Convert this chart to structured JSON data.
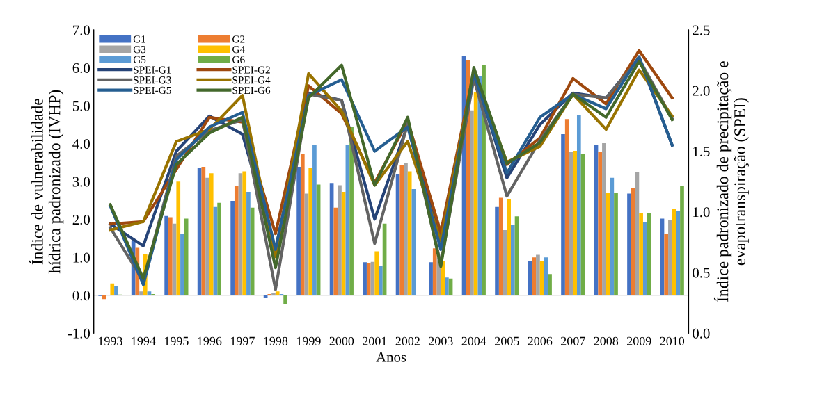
{
  "chart_data": {
    "type": "bar",
    "xlabel": "Anos",
    "ylabel": "Índice de vulnerabilidade\nhídrica padronizado (IVHP)",
    "y2label": "Índice padronizado de precipitação e\nevapotranspiração (SPEI)",
    "categories": [
      "1993",
      "1994",
      "1995",
      "1996",
      "1997",
      "1998",
      "1999",
      "2000",
      "2001",
      "2002",
      "2003",
      "2004",
      "2005",
      "2006",
      "2007",
      "2008",
      "2009",
      "2010"
    ],
    "ylim": [
      -1,
      7
    ],
    "yticks": [
      {
        "value": -1,
        "label": "-1.0"
      },
      {
        "value": 0,
        "label": "0.0"
      },
      {
        "value": 1,
        "label": "1.0"
      },
      {
        "value": 2,
        "label": "2.0"
      },
      {
        "value": 3,
        "label": "3.0"
      },
      {
        "value": 4,
        "label": "4.0"
      },
      {
        "value": 5,
        "label": "5.0"
      },
      {
        "value": 6,
        "label": "6.0"
      },
      {
        "value": 7,
        "label": "7.0"
      }
    ],
    "y2lim": [
      0,
      2.5
    ],
    "y2ticks": [
      {
        "value": 0,
        "label": "0.0"
      },
      {
        "value": 0.5,
        "label": "0.5"
      },
      {
        "value": 1,
        "label": "1.0"
      },
      {
        "value": 1.5,
        "label": "1.5"
      },
      {
        "value": 2,
        "label": "2.0"
      },
      {
        "value": 2.5,
        "label": "2.5"
      }
    ],
    "grid": false,
    "legend": "top left",
    "ref_lines": [
      {
        "axis": "y",
        "value": 0,
        "color": "#d9d9d9"
      }
    ],
    "series": [
      {
        "name": "G1",
        "color": "#4472c4",
        "values": [
          -0.02,
          1.45,
          2.09,
          3.37,
          2.49,
          -0.08,
          3.39,
          2.96,
          0.87,
          3.19,
          0.87,
          6.31,
          2.33,
          0.9,
          4.25,
          3.96,
          2.68,
          2.02
        ]
      },
      {
        "name": "G2",
        "color": "#ed7d31",
        "values": [
          -0.1,
          1.25,
          2.06,
          3.39,
          2.89,
          0.03,
          3.72,
          2.31,
          0.84,
          3.43,
          1.24,
          6.21,
          2.57,
          1.0,
          4.65,
          3.79,
          2.84,
          1.61
        ]
      },
      {
        "name": "G3",
        "color": "#a5a5a5",
        "values": [
          null,
          0.1,
          1.89,
          3.1,
          3.22,
          0.05,
          2.68,
          2.9,
          0.88,
          3.5,
          1.0,
          4.88,
          1.72,
          1.07,
          3.78,
          4.01,
          3.26,
          1.99
        ]
      },
      {
        "name": "G4",
        "color": "#ffc000",
        "values": [
          0.31,
          1.09,
          3.0,
          3.22,
          3.27,
          0.1,
          3.37,
          2.73,
          1.16,
          3.27,
          0.9,
          5.37,
          2.54,
          0.91,
          3.81,
          2.71,
          2.17,
          2.27
        ]
      },
      {
        "name": "G5",
        "color": "#5b9bd5",
        "values": [
          0.24,
          0.1,
          1.62,
          2.33,
          2.73,
          0.03,
          3.96,
          3.96,
          0.78,
          2.8,
          0.47,
          5.78,
          1.86,
          1.0,
          4.75,
          3.1,
          1.94,
          2.23
        ]
      },
      {
        "name": "G6",
        "color": "#70ad47",
        "values": [
          0.02,
          0.03,
          2.02,
          2.44,
          2.31,
          -0.23,
          2.92,
          4.45,
          1.89,
          null,
          0.44,
          6.08,
          2.08,
          0.56,
          3.73,
          2.71,
          2.17,
          2.89
        ]
      },
      {
        "name": "SPEI-G1",
        "type": "line",
        "axis": "y2",
        "color": "#264478",
        "values": [
          0.9,
          0.72,
          1.5,
          1.79,
          1.64,
          0.69,
          1.98,
          1.92,
          0.94,
          1.72,
          0.76,
          2.15,
          1.28,
          1.72,
          1.98,
          1.94,
          2.27,
          1.55
        ]
      },
      {
        "name": "SPEI-G2",
        "type": "line",
        "axis": "y2",
        "color": "#9e480e",
        "values": [
          0.9,
          0.92,
          1.35,
          1.78,
          1.74,
          0.82,
          2.04,
          1.81,
          1.24,
          1.75,
          0.83,
          2.16,
          1.39,
          1.61,
          2.1,
          1.89,
          2.33,
          1.94
        ]
      },
      {
        "name": "SPEI-G3",
        "type": "line",
        "axis": "y2",
        "color": "#636363",
        "values": [
          0.87,
          0.43,
          1.46,
          1.67,
          1.76,
          0.36,
          1.97,
          1.92,
          0.74,
          1.73,
          0.57,
          2.1,
          1.13,
          1.59,
          1.97,
          1.94,
          2.26,
          1.77
        ]
      },
      {
        "name": "SPEI-G4",
        "type": "line",
        "axis": "y2",
        "color": "#997300",
        "values": [
          0.85,
          0.92,
          1.58,
          1.68,
          1.96,
          0.63,
          2.14,
          1.83,
          1.22,
          1.58,
          0.76,
          2.15,
          1.41,
          1.54,
          1.97,
          1.68,
          2.17,
          1.79
        ]
      },
      {
        "name": "SPEI-G5",
        "type": "line",
        "axis": "y2",
        "color": "#255e91",
        "values": [
          1.05,
          0.4,
          1.43,
          1.7,
          1.82,
          0.69,
          1.96,
          2.09,
          1.5,
          1.7,
          0.69,
          2.14,
          1.32,
          1.78,
          1.97,
          1.85,
          2.28,
          1.55
        ]
      },
      {
        "name": "SPEI-G6",
        "type": "line",
        "axis": "y2",
        "color": "#43682b",
        "values": [
          1.06,
          0.45,
          1.39,
          1.65,
          1.78,
          0.54,
          1.94,
          2.21,
          1.22,
          1.78,
          0.55,
          2.19,
          1.4,
          1.57,
          1.97,
          1.78,
          2.24,
          1.76
        ]
      }
    ]
  }
}
